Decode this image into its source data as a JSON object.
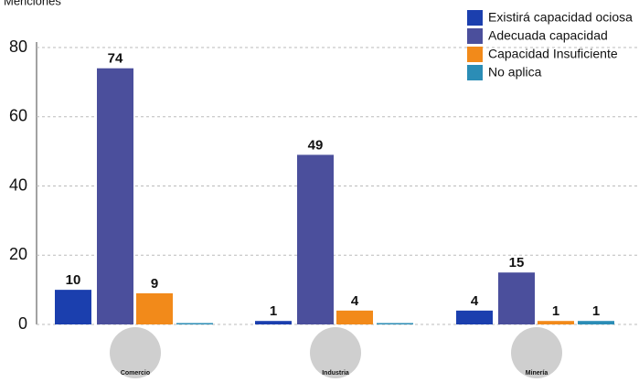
{
  "chart_data": {
    "type": "bar",
    "y_label": "Menciones",
    "categories": [
      "Comercio",
      "Industria",
      "Minería"
    ],
    "series": [
      {
        "name": "Existirá capacidad ociosa",
        "color": "#1b3fae",
        "values": [
          10,
          1,
          4
        ]
      },
      {
        "name": "Adecuada capacidad",
        "color": "#4b4f9c",
        "values": [
          74,
          49,
          15
        ]
      },
      {
        "name": "Capacidad Insuficiente",
        "color": "#f28a1a",
        "values": [
          9,
          4,
          1
        ]
      },
      {
        "name": "No aplica",
        "color": "#2b8db6",
        "values": [
          0,
          0,
          1
        ],
        "value_labels": [
          null,
          null,
          "1"
        ]
      }
    ],
    "ylim": [
      0,
      80
    ],
    "yticks": [
      0,
      20,
      40,
      60,
      80
    ],
    "grid": true,
    "legend": "top-right"
  }
}
